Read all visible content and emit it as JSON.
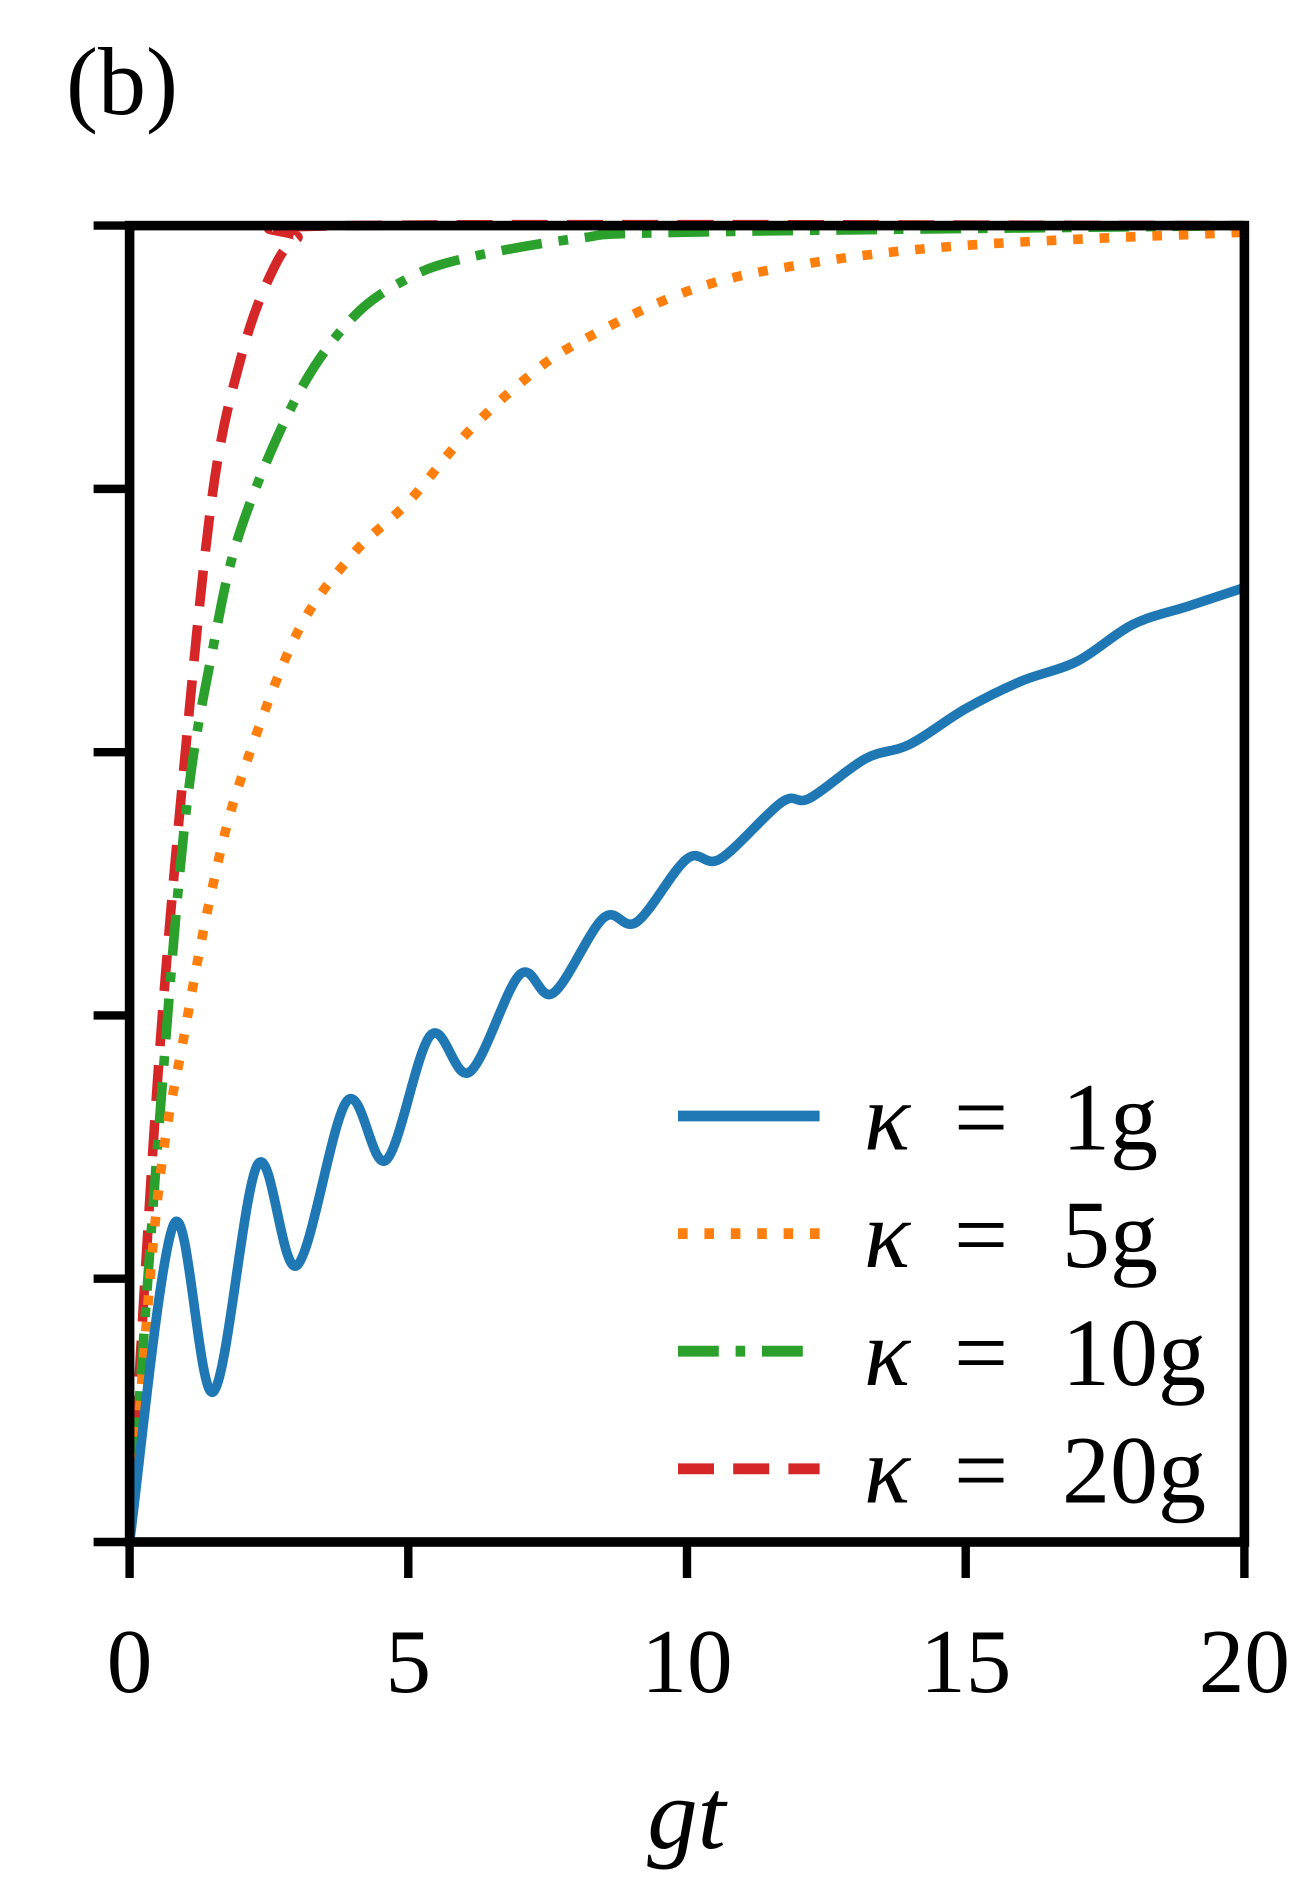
{
  "panel_label": "(b)",
  "chart_data": {
    "type": "line",
    "title": "",
    "xlabel": "gt",
    "ylabel": "",
    "xlim": [
      0,
      20
    ],
    "ylim": [
      0,
      1
    ],
    "x_ticks": [
      0,
      5,
      10,
      15,
      20
    ],
    "x_tick_labels": [
      "0",
      "5",
      "10",
      "15",
      "20"
    ],
    "y_ticks": [
      0,
      0.2,
      0.4,
      0.6,
      0.8,
      1.0
    ],
    "y_tick_labels_shown": false,
    "grid": false,
    "legend_position": "bottom-right",
    "series": [
      {
        "name": "κ = 1g",
        "label_kappa": "κ",
        "label_eq": "=",
        "label_value": "1g",
        "color": "#1f77b4",
        "style": "solid",
        "x": [
          0,
          0.8,
          1.5,
          2.3,
          3.0,
          3.9,
          4.6,
          5.4,
          6.1,
          7.0,
          7.6,
          8.5,
          9.1,
          10,
          10.6,
          11.7,
          12.2,
          13.2,
          14,
          15,
          16,
          17,
          18,
          19,
          20
        ],
        "y": [
          0,
          0.242,
          0.114,
          0.287,
          0.21,
          0.335,
          0.29,
          0.385,
          0.357,
          0.431,
          0.417,
          0.474,
          0.471,
          0.519,
          0.519,
          0.562,
          0.565,
          0.595,
          0.606,
          0.633,
          0.654,
          0.669,
          0.697,
          0.711,
          0.725
        ]
      },
      {
        "name": "κ = 5g",
        "label_kappa": "κ",
        "label_eq": "=",
        "label_value": "5g",
        "color": "#ff7f0e",
        "style": "dotted",
        "x": [
          0,
          0.5,
          1,
          1.5,
          2,
          3,
          4,
          5,
          6,
          7,
          8,
          10,
          12,
          15,
          20
        ],
        "y": [
          0,
          0.26,
          0.39,
          0.5,
          0.58,
          0.69,
          0.75,
          0.79,
          0.84,
          0.88,
          0.91,
          0.95,
          0.97,
          0.985,
          0.995
        ]
      },
      {
        "name": "κ = 10g",
        "label_kappa": "κ",
        "label_eq": "=",
        "label_value": "10g",
        "color": "#2ca02c",
        "style": "dashdot",
        "x": [
          0,
          0.5,
          1,
          1.5,
          2,
          3,
          4,
          5,
          6,
          8,
          10,
          20
        ],
        "y": [
          0,
          0.3,
          0.55,
          0.68,
          0.77,
          0.87,
          0.93,
          0.96,
          0.975,
          0.99,
          0.995,
          1.0
        ]
      },
      {
        "name": "κ = 20g",
        "label_kappa": "κ",
        "label_eq": "=",
        "label_value": "20g",
        "color": "#d62728",
        "style": "dashed",
        "x": [
          0,
          0.5,
          1,
          1.5,
          2,
          2.5,
          3,
          4,
          20
        ],
        "y": [
          0,
          0.35,
          0.6,
          0.8,
          0.9,
          0.96,
          0.99,
          1.0,
          1.0
        ]
      }
    ]
  }
}
